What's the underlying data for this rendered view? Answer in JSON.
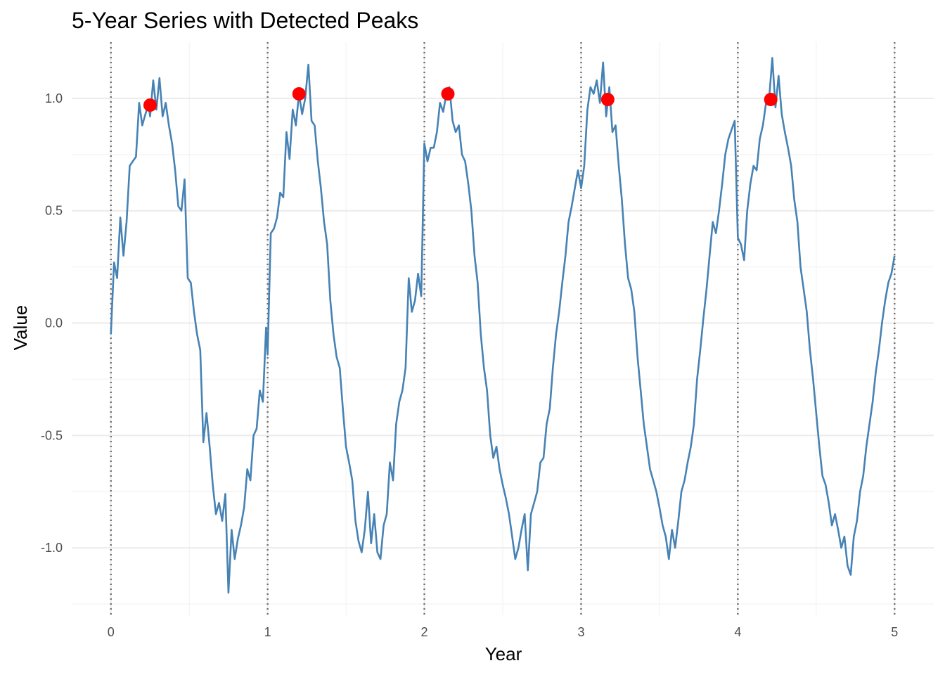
{
  "chart_data": {
    "type": "line",
    "title": "5-Year Series with Detected Peaks",
    "xlabel": "Year",
    "ylabel": "Value",
    "xlim": [
      -0.25,
      5.25
    ],
    "ylim": [
      -1.3,
      1.25
    ],
    "x_ticks": [
      0,
      1,
      2,
      3,
      4,
      5
    ],
    "x_tick_labels": [
      "0",
      "1",
      "2",
      "3",
      "4",
      "5"
    ],
    "y_ticks": [
      -1.0,
      -0.5,
      0.0,
      0.5,
      1.0
    ],
    "y_tick_labels": [
      "-1.0",
      "-0.5",
      "0.0",
      "0.5",
      "1.0"
    ],
    "grid": true,
    "vertical_reference_lines": [
      0,
      1,
      2,
      3,
      4,
      5
    ],
    "colors": {
      "series": "#4682b4",
      "peaks": "#ff0000",
      "reference_lines": "#6e6e6e"
    },
    "series": [
      {
        "x": [
          0,
          0.02,
          0.04,
          0.06,
          0.08,
          0.1,
          0.12,
          0.14,
          0.16,
          0.18,
          0.2,
          0.22,
          0.24,
          0.25,
          0.27,
          0.29,
          0.31,
          0.33,
          0.35,
          0.37,
          0.39,
          0.41,
          0.43,
          0.45,
          0.47,
          0.49,
          0.51,
          0.53,
          0.55,
          0.57,
          0.59,
          0.61,
          0.63,
          0.65,
          0.67,
          0.69,
          0.71,
          0.73,
          0.75,
          0.77,
          0.79,
          0.81,
          0.83,
          0.85,
          0.87,
          0.89,
          0.91,
          0.93,
          0.95,
          0.97,
          0.99,
          1.0,
          1.02,
          1.04,
          1.06,
          1.08,
          1.1,
          1.12,
          1.14,
          1.16,
          1.18,
          1.2,
          1.22,
          1.24,
          1.26,
          1.28,
          1.3,
          1.32,
          1.34,
          1.36,
          1.38,
          1.4,
          1.42,
          1.44,
          1.46,
          1.48,
          1.5,
          1.52,
          1.54,
          1.56,
          1.58,
          1.6,
          1.62,
          1.64,
          1.66,
          1.68,
          1.7,
          1.72,
          1.74,
          1.76,
          1.78,
          1.8,
          1.82,
          1.84,
          1.86,
          1.88,
          1.9,
          1.92,
          1.94,
          1.96,
          1.98,
          2.0,
          2.02,
          2.04,
          2.06,
          2.08,
          2.1,
          2.12,
          2.14,
          2.16,
          2.18,
          2.2,
          2.22,
          2.24,
          2.26,
          2.28,
          2.3,
          2.32,
          2.34,
          2.36,
          2.38,
          2.4,
          2.42,
          2.44,
          2.46,
          2.48,
          2.5,
          2.52,
          2.54,
          2.56,
          2.58,
          2.6,
          2.62,
          2.64,
          2.66,
          2.68,
          2.7,
          2.72,
          2.74,
          2.76,
          2.78,
          2.8,
          2.82,
          2.84,
          2.86,
          2.88,
          2.9,
          2.92,
          2.94,
          2.96,
          2.98,
          3.0,
          3.02,
          3.04,
          3.06,
          3.08,
          3.1,
          3.12,
          3.14,
          3.16,
          3.18,
          3.2,
          3.22,
          3.24,
          3.26,
          3.28,
          3.3,
          3.32,
          3.34,
          3.36,
          3.38,
          3.4,
          3.42,
          3.44,
          3.46,
          3.48,
          3.5,
          3.52,
          3.54,
          3.56,
          3.58,
          3.6,
          3.62,
          3.64,
          3.66,
          3.68,
          3.7,
          3.72,
          3.74,
          3.76,
          3.78,
          3.8,
          3.82,
          3.84,
          3.86,
          3.88,
          3.9,
          3.92,
          3.94,
          3.96,
          3.98,
          4.0,
          4.02,
          4.04,
          4.06,
          4.08,
          4.1,
          4.12,
          4.14,
          4.16,
          4.18,
          4.2,
          4.22,
          4.24,
          4.26,
          4.28,
          4.3,
          4.32,
          4.34,
          4.36,
          4.38,
          4.4,
          4.42,
          4.44,
          4.46,
          4.48,
          4.5,
          4.52,
          4.54,
          4.56,
          4.58,
          4.6,
          4.62,
          4.64,
          4.66,
          4.68,
          4.7,
          4.72,
          4.74,
          4.76,
          4.78,
          4.8,
          4.82,
          4.84,
          4.86,
          4.88,
          4.9,
          4.92,
          4.94,
          4.96,
          4.98,
          5.0
        ],
        "y": [
          -0.05,
          0.27,
          0.2,
          0.47,
          0.3,
          0.45,
          0.7,
          0.72,
          0.74,
          0.98,
          0.88,
          0.93,
          0.97,
          0.92,
          1.08,
          0.95,
          1.09,
          0.92,
          0.98,
          0.88,
          0.8,
          0.68,
          0.52,
          0.5,
          0.64,
          0.2,
          0.18,
          0.05,
          -0.05,
          -0.12,
          -0.53,
          -0.4,
          -0.55,
          -0.72,
          -0.85,
          -0.8,
          -0.88,
          -0.76,
          -1.2,
          -0.92,
          -1.05,
          -0.96,
          -0.9,
          -0.82,
          -0.65,
          -0.7,
          -0.5,
          -0.47,
          -0.3,
          -0.35,
          -0.02,
          -0.14,
          0.4,
          0.42,
          0.47,
          0.58,
          0.56,
          0.85,
          0.73,
          0.95,
          0.88,
          1.02,
          0.93,
          1.0,
          1.15,
          0.9,
          0.88,
          0.72,
          0.6,
          0.45,
          0.35,
          0.1,
          -0.05,
          -0.15,
          -0.2,
          -0.38,
          -0.55,
          -0.62,
          -0.7,
          -0.88,
          -0.97,
          -1.02,
          -0.92,
          -0.75,
          -0.98,
          -0.85,
          -1.02,
          -1.05,
          -0.9,
          -0.85,
          -0.62,
          -0.7,
          -0.45,
          -0.35,
          -0.3,
          -0.2,
          0.2,
          0.05,
          0.1,
          0.22,
          0.12,
          0.8,
          0.72,
          0.78,
          0.78,
          0.85,
          0.98,
          0.94,
          1.02,
          1.05,
          0.9,
          0.85,
          0.88,
          0.75,
          0.72,
          0.62,
          0.5,
          0.3,
          0.18,
          -0.05,
          -0.2,
          -0.3,
          -0.5,
          -0.6,
          -0.55,
          -0.65,
          -0.72,
          -0.78,
          -0.85,
          -0.95,
          -1.05,
          -1.0,
          -0.92,
          -0.85,
          -1.1,
          -0.85,
          -0.8,
          -0.75,
          -0.62,
          -0.6,
          -0.45,
          -0.38,
          -0.2,
          -0.05,
          0.05,
          0.18,
          0.3,
          0.45,
          0.52,
          0.6,
          0.68,
          0.6,
          0.7,
          0.95,
          1.05,
          1.02,
          1.08,
          0.98,
          1.16,
          0.92,
          1.05,
          0.85,
          0.88,
          0.7,
          0.55,
          0.35,
          0.2,
          0.15,
          0.05,
          -0.15,
          -0.3,
          -0.45,
          -0.55,
          -0.65,
          -0.7,
          -0.75,
          -0.82,
          -0.9,
          -0.95,
          -1.05,
          -0.92,
          -1.0,
          -0.88,
          -0.75,
          -0.7,
          -0.62,
          -0.55,
          -0.45,
          -0.25,
          -0.12,
          0.02,
          0.15,
          0.3,
          0.45,
          0.4,
          0.5,
          0.62,
          0.75,
          0.82,
          0.86,
          0.9,
          0.38,
          0.35,
          0.28,
          0.5,
          0.62,
          0.7,
          0.68,
          0.82,
          0.88,
          0.98,
          1.0,
          1.18,
          0.96,
          1.1,
          0.93,
          0.85,
          0.78,
          0.7,
          0.55,
          0.45,
          0.25,
          0.15,
          0.05,
          -0.12,
          -0.25,
          -0.4,
          -0.55,
          -0.68,
          -0.72,
          -0.8,
          -0.9,
          -0.85,
          -0.92,
          -1.0,
          -0.95,
          -1.08,
          -1.12,
          -0.95,
          -0.88,
          -0.75,
          -0.68,
          -0.55,
          -0.45,
          -0.35,
          -0.22,
          -0.12,
          0.0,
          0.1,
          0.18,
          0.22,
          0.3
        ]
      }
    ],
    "peaks": {
      "x": [
        0.25,
        1.2,
        2.15,
        3.17,
        4.21
      ],
      "y": [
        0.97,
        1.02,
        1.02,
        0.995,
        0.995
      ]
    }
  }
}
